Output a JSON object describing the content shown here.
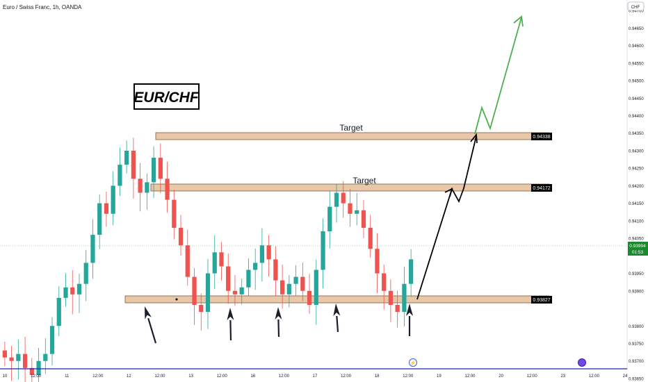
{
  "header": {
    "symbol_title": "Euro / Swiss Franc, 1h, OANDA"
  },
  "currency_badge": "CHF",
  "overlay_title": "EUR/CHF",
  "price_axis": {
    "ticks": [
      "0.94700",
      "0.94650",
      "0.94600",
      "0.94550",
      "0.94500",
      "0.94450",
      "0.94400",
      "0.94350",
      "0.94300",
      "0.94250",
      "0.94200",
      "0.94150",
      "0.94100",
      "0.94050",
      "0.93950",
      "0.93900",
      "0.93800",
      "0.93750",
      "0.93700",
      "0.93650"
    ],
    "current_price": "0.93994",
    "countdown": "01:53"
  },
  "time_axis": {
    "labels": [
      "10",
      "12:00",
      "11",
      "12:00",
      "12",
      "12:00",
      "13",
      "12:00",
      "16",
      "12:00",
      "17",
      "12:00",
      "18",
      "12:00",
      "19",
      "12:00",
      "20",
      "12:00",
      "23",
      "12:00",
      "24"
    ]
  },
  "zones": [
    {
      "name": "upper-target",
      "price": "0.94338",
      "label": "Target"
    },
    {
      "name": "middle-target",
      "price": "0.94172",
      "label": "Target"
    },
    {
      "name": "support",
      "price": "0.93827",
      "label": ""
    }
  ],
  "colors": {
    "bull": "#26a69a",
    "bear": "#ef5350",
    "zone_fill": "#e8c8a8",
    "projection_up": "#4caf50",
    "projection_path": "#000000",
    "axis_line": "#1e22aa",
    "price_label_bg": "#000000",
    "current_label_bg": "#1b8a2e"
  },
  "chart_data": {
    "type": "candlestick",
    "title": "Euro / Swiss Franc, 1h, OANDA",
    "ylim": [
      0.9364,
      0.9473
    ],
    "ohlc_close_path_approx": [
      0.9371,
      0.937,
      0.9372,
      0.9368,
      0.9366,
      0.937,
      0.9372,
      0.938,
      0.9388,
      0.9391,
      0.9389,
      0.9392,
      0.9398,
      0.9406,
      0.9415,
      0.9412,
      0.942,
      0.9426,
      0.943,
      0.9422,
      0.9418,
      0.9421,
      0.9428,
      0.9422,
      0.9416,
      0.9408,
      0.9403,
      0.9394,
      0.9386,
      0.9384,
      0.9395,
      0.9401,
      0.9397,
      0.939,
      0.9389,
      0.9391,
      0.9396,
      0.9398,
      0.9403,
      0.9399,
      0.9393,
      0.9389,
      0.9392,
      0.9394,
      0.939,
      0.9386,
      0.9396,
      0.9407,
      0.9414,
      0.9418,
      0.9415,
      0.9412,
      0.9413,
      0.9408,
      0.9402,
      0.9395,
      0.939,
      0.9386,
      0.9384,
      0.9392,
      0.9399
    ],
    "levels": [
      0.94338,
      0.94172,
      0.93827
    ],
    "current_price": 0.93994,
    "projection": [
      0.93827,
      0.94172,
      0.9415,
      0.94338,
      0.9443,
      0.9435,
      0.947
    ]
  }
}
